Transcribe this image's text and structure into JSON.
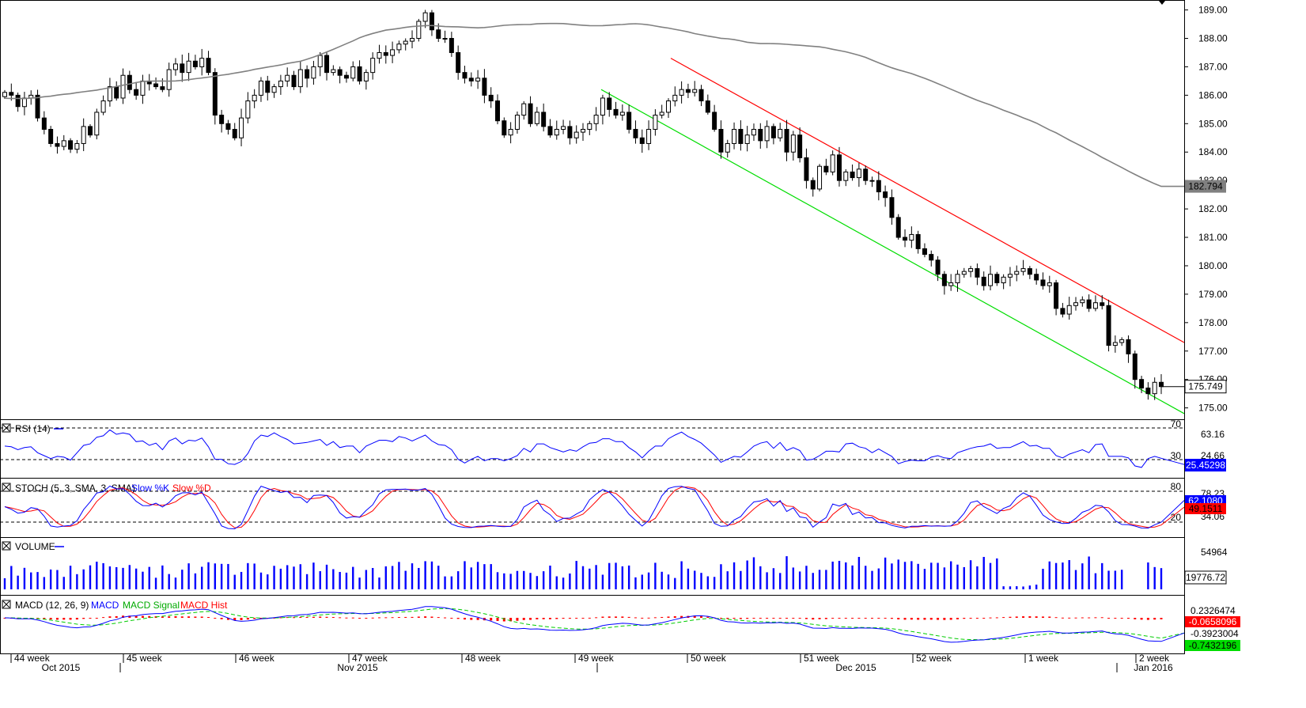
{
  "chart_data": [
    {
      "type": "candlestick",
      "panel": "price",
      "y_ticks": [
        "189.00",
        "188.00",
        "187.00",
        "186.00",
        "185.00",
        "184.00",
        "183.00",
        "182.00",
        "181.00",
        "180.00",
        "179.00",
        "178.00",
        "177.00",
        "176.00",
        "175.00"
      ],
      "ylim": [
        174.6,
        189.35
      ],
      "ma_label": "182.794",
      "last_price_label": "175.749",
      "ma_value": 182.794,
      "last_price": 175.749,
      "colors": {
        "candle": "#000000",
        "ma": "#808080",
        "upper_channel": "#ff0000",
        "lower_channel": "#00dd00"
      },
      "closes": [
        186.1,
        186.0,
        185.6,
        185.9,
        186.0,
        185.2,
        184.8,
        184.3,
        184.2,
        184.4,
        184.1,
        184.3,
        184.9,
        184.6,
        185.4,
        185.8,
        186.3,
        185.9,
        186.7,
        186.2,
        186.0,
        186.5,
        186.4,
        186.3,
        186.2,
        186.9,
        187.1,
        186.8,
        187.2,
        187.0,
        187.3,
        186.8,
        185.3,
        185.0,
        184.8,
        184.5,
        185.2,
        185.8,
        186.0,
        186.5,
        186.1,
        186.3,
        186.5,
        186.7,
        186.3,
        186.9,
        186.6,
        187.0,
        187.4,
        186.8,
        186.9,
        186.7,
        186.6,
        187.0,
        186.5,
        186.8,
        187.3,
        187.5,
        187.4,
        187.6,
        187.8,
        187.9,
        188.0,
        188.6,
        188.9,
        188.3,
        188.0,
        188.0,
        187.5,
        186.8,
        186.6,
        186.5,
        186.6,
        186.0,
        185.8,
        185.1,
        184.6,
        184.8,
        185.3,
        185.7,
        185.0,
        185.4,
        184.9,
        184.6,
        184.8,
        184.9,
        184.5,
        184.7,
        184.8,
        185.0,
        185.3,
        185.9,
        185.5,
        185.3,
        185.4,
        184.8,
        184.5,
        184.3,
        184.8,
        185.3,
        185.4,
        185.8,
        186.0,
        186.2,
        186.1,
        186.2,
        185.8,
        185.4,
        184.8,
        184.0,
        184.3,
        184.8,
        184.3,
        184.6,
        184.8,
        184.4,
        184.9,
        184.5,
        184.8,
        184.0,
        184.6,
        183.8,
        183.0,
        182.7,
        183.5,
        183.3,
        183.9,
        183.0,
        183.3,
        183.1,
        183.4,
        183.0,
        183.0,
        182.6,
        182.4,
        181.7,
        181.0,
        180.9,
        181.1,
        180.6,
        180.4,
        180.2,
        179.7,
        179.3,
        179.4,
        179.7,
        179.8,
        179.9,
        179.6,
        179.3,
        179.7,
        179.4,
        179.6,
        179.7,
        179.8,
        179.9,
        179.7,
        179.5,
        179.3,
        179.4,
        178.5,
        178.3,
        178.6,
        178.7,
        178.8,
        178.5,
        178.7,
        178.6,
        177.2,
        177.3,
        177.4,
        176.9,
        176.0,
        175.7,
        175.5,
        175.9,
        175.749
      ]
    },
    {
      "type": "line",
      "panel": "RSI",
      "title": "RSI (14)",
      "levels": [
        "70",
        "30"
      ],
      "value_label": "63.16",
      "current_label": "25.45298",
      "current": 25.45298,
      "series": [
        {
          "color": "#0000ff"
        }
      ]
    },
    {
      "type": "line",
      "panel": "STOCH",
      "title": "STOCH (5, 3, SMA, 3, SMA)",
      "legend": [
        "Slow %K",
        "Slow %D"
      ],
      "levels": [
        "80",
        "20"
      ],
      "value_labels": [
        "78.23",
        "34.06"
      ],
      "label_k": "62.1080",
      "label_d": "49.1511",
      "k_current": 62.108,
      "d_current": 49.1511,
      "colors": {
        "k": "#0000ff",
        "d": "#ff0000"
      }
    },
    {
      "type": "bar",
      "panel": "VOLUME",
      "title": "VOLUME",
      "value_label": "54964",
      "current_label": "19776.72",
      "current": 19776.72,
      "color": "#0000ff"
    },
    {
      "type": "line",
      "panel": "MACD",
      "title": "MACD (12, 26, 9)",
      "legend": [
        "MACD",
        "MACD Signal",
        "MACD Hist"
      ],
      "value_labels": [
        "0.2326474",
        "-0.3923004"
      ],
      "label_macd": "-0.0658096",
      "label_signal": "-0.7432196",
      "macd_current": -0.0658096,
      "signal_current": -0.7432196,
      "colors": {
        "macd": "#0000ff",
        "signal": "#00cc00",
        "hist": "#ff0000"
      }
    }
  ],
  "x_axis": {
    "weeks": [
      "44 week",
      "45 week",
      "46 week",
      "47 week",
      "48 week",
      "49 week",
      "50 week",
      "51 week",
      "52 week",
      "1 week",
      "2 week"
    ],
    "months": [
      "Oct 2015",
      "Nov 2015",
      "Dec 2015",
      "Jan 2016"
    ]
  }
}
